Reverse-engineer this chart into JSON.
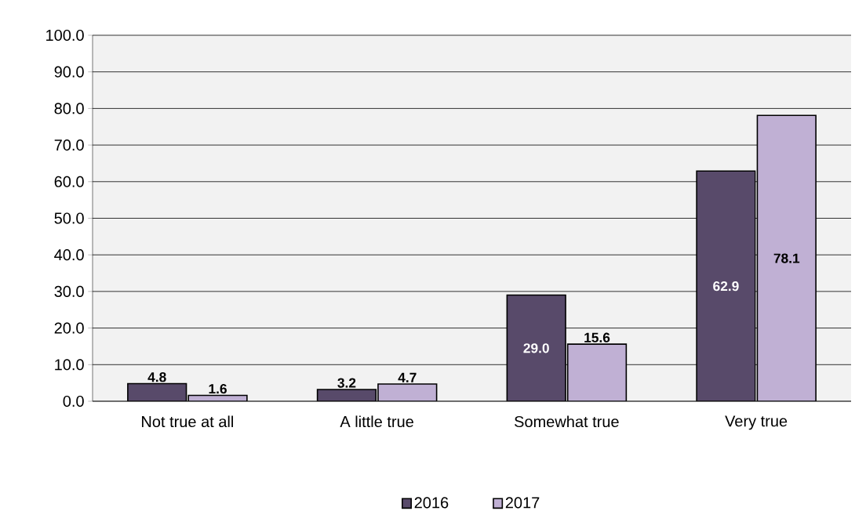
{
  "chart_data": {
    "type": "bar",
    "categories": [
      "Not true at all",
      "A little true",
      "Somewhat true",
      "Very true"
    ],
    "series": [
      {
        "name": "2016",
        "color": "#584a6a",
        "values": [
          4.8,
          3.2,
          29.0,
          62.9
        ],
        "value_labels": [
          "4.8",
          "3.2",
          "29.0",
          "62.9"
        ]
      },
      {
        "name": "2017",
        "color": "#c0b0d4",
        "values": [
          1.6,
          4.7,
          15.6,
          78.1
        ],
        "value_labels": [
          "1.6",
          "4.7",
          "15.6",
          "78.1"
        ]
      }
    ],
    "ylim": [
      0,
      100
    ],
    "yticks": [
      {
        "value": 0,
        "label": "0.0"
      },
      {
        "value": 10,
        "label": "10.0"
      },
      {
        "value": 20,
        "label": "20.0"
      },
      {
        "value": 30,
        "label": "30.0"
      },
      {
        "value": 40,
        "label": "40.0"
      },
      {
        "value": 50,
        "label": "50.0"
      },
      {
        "value": 60,
        "label": "60.0"
      },
      {
        "value": 70,
        "label": "70.0"
      },
      {
        "value": 80,
        "label": "80.0"
      },
      {
        "value": 90,
        "label": "90.0"
      },
      {
        "value": 100,
        "label": "100.0"
      }
    ],
    "grid": "y",
    "legend": "bottom"
  }
}
